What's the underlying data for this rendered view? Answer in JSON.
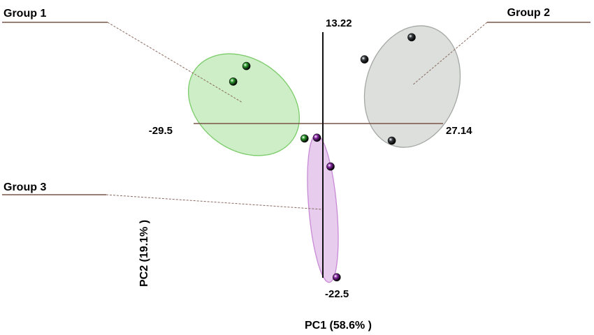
{
  "chart_data": {
    "type": "scatter",
    "title": "",
    "xlabel": "PC1 (58.6% )",
    "ylabel": "PC2 (19.1% )",
    "xlim": [
      -29.5,
      27.14
    ],
    "ylim": [
      -22.5,
      13.22
    ],
    "axis_labels": {
      "x_min": "-29.5",
      "x_max": "27.14",
      "y_min": "-22.5",
      "y_max": "13.22"
    },
    "grid": false,
    "legend": "none",
    "series": [
      {
        "name": "Group 1",
        "color": "#2e9e2e",
        "ellipse_fill": "#c8ecc0",
        "ellipse_stroke": "#7ccc6a",
        "points": [
          {
            "x": -17.5,
            "y": 7.3
          },
          {
            "x": -20.5,
            "y": 5.2
          },
          {
            "x": -4.3,
            "y": -2.5
          }
        ]
      },
      {
        "name": "Group 2",
        "color": "#3a3f44",
        "ellipse_fill": "#d8dbd8",
        "ellipse_stroke": "#a4a8a4",
        "points": [
          {
            "x": 20.0,
            "y": 11.2
          },
          {
            "x": 9.3,
            "y": 8.2
          },
          {
            "x": 15.5,
            "y": -2.8
          }
        ]
      },
      {
        "name": "Group 3",
        "color": "#8a2aa8",
        "ellipse_fill": "#e4c6ec",
        "ellipse_stroke": "#c88ad6",
        "points": [
          {
            "x": -1.5,
            "y": -2.4
          },
          {
            "x": 1.6,
            "y": -6.3
          },
          {
            "x": 3.0,
            "y": -21.3
          }
        ]
      }
    ]
  }
}
